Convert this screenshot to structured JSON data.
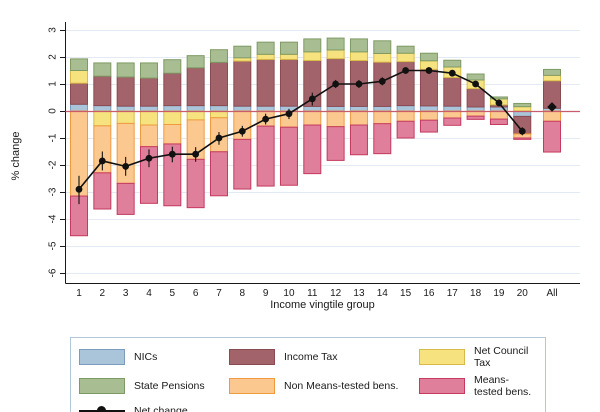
{
  "figure": {
    "y_axis_label": "% change",
    "x_axis_label": "Income vingtile group"
  },
  "legend": {
    "net_change_label": "Net change"
  },
  "chart_data": {
    "type": "bar",
    "stacked": true,
    "title": "",
    "xlabel": "Income vingtile group",
    "ylabel": "% change",
    "ylim": [
      -6,
      3
    ],
    "y_ticks": [
      3,
      2,
      1,
      0,
      -1,
      -2,
      -3,
      -4,
      -5,
      -6
    ],
    "grid": true,
    "gridline_color": "#e4eaf3",
    "axis_color": "#1a1a1a",
    "zero_line_color": "#c95c6a",
    "legend_position": "bottom",
    "categories": [
      "1",
      "2",
      "3",
      "4",
      "5",
      "6",
      "7",
      "8",
      "9",
      "10",
      "11",
      "12",
      "13",
      "14",
      "15",
      "16",
      "17",
      "18",
      "19",
      "20",
      "All"
    ],
    "series": [
      {
        "name": "NICs",
        "fill": "#aac4d9",
        "stroke": "#7b9cbd",
        "values": [
          0.25,
          0.2,
          0.18,
          0.18,
          0.2,
          0.2,
          0.2,
          0.18,
          0.18,
          0.18,
          0.17,
          0.17,
          0.17,
          0.17,
          0.2,
          0.19,
          0.18,
          0.15,
          0.15,
          -0.2,
          0.1
        ]
      },
      {
        "name": "Income Tax",
        "fill": "#a2646a",
        "stroke": "#8a4a52",
        "values": [
          0.78,
          1.09,
          1.08,
          1.04,
          1.2,
          1.4,
          1.6,
          1.67,
          1.73,
          1.73,
          1.7,
          1.77,
          1.7,
          1.64,
          1.63,
          1.35,
          1.06,
          0.68,
          0.08,
          -0.65,
          1.02
        ]
      },
      {
        "name": "Net Council Tax",
        "fill": "#f6e27f",
        "stroke": "#d8ba4a",
        "values": [
          0.47,
          -0.55,
          -0.46,
          -0.52,
          -0.5,
          -0.33,
          -0.25,
          0.12,
          0.19,
          0.19,
          0.32,
          0.32,
          0.32,
          0.32,
          0.31,
          0.32,
          0.39,
          0.32,
          0.22,
          0.16,
          0.2
        ]
      },
      {
        "name": "State Pensions",
        "fill": "#a9bd92",
        "stroke": "#7e9b64",
        "values": [
          0.43,
          0.49,
          0.52,
          0.56,
          0.5,
          0.45,
          0.47,
          0.43,
          0.45,
          0.45,
          0.48,
          0.44,
          0.48,
          0.47,
          0.26,
          0.28,
          0.25,
          0.22,
          0.07,
          0.12,
          0.22
        ]
      },
      {
        "name": "Non Means-tested bens.",
        "fill": "#fbc98f",
        "stroke": "#ef9a3f",
        "values": [
          -3.15,
          -1.74,
          -2.22,
          -0.8,
          -0.72,
          -1.46,
          -1.26,
          -1.05,
          -0.56,
          -0.6,
          -0.52,
          -0.58,
          -0.52,
          -0.47,
          -0.38,
          -0.34,
          -0.26,
          -0.19,
          -0.3,
          -0.15,
          -0.38
        ]
      },
      {
        "name": "Means-tested bens.",
        "fill": "#df7f9b",
        "stroke": "#c53a5f",
        "values": [
          -1.47,
          -1.34,
          -1.15,
          -2.1,
          -2.29,
          -1.79,
          -1.63,
          -1.84,
          -2.22,
          -2.15,
          -1.8,
          -1.25,
          -1.1,
          -1.11,
          -0.62,
          -0.44,
          -0.27,
          -0.12,
          -0.2,
          -0.05,
          -1.14
        ]
      }
    ],
    "net_change": {
      "name": "Net change",
      "color": "#111111",
      "marker_last": "diamond",
      "values": [
        -2.9,
        -1.85,
        -2.05,
        -1.75,
        -1.6,
        -1.6,
        -1.0,
        -0.75,
        -0.3,
        -0.1,
        0.45,
        1.0,
        1.0,
        1.1,
        1.5,
        1.5,
        1.4,
        1.0,
        0.3,
        -0.75,
        0.15
      ],
      "ci_low": [
        -3.45,
        -2.2,
        -2.4,
        -2.08,
        -1.9,
        -1.88,
        -1.25,
        -0.95,
        -0.5,
        -0.3,
        0.2,
        0.85,
        0.85,
        0.95,
        1.38,
        1.38,
        1.28,
        0.9,
        0.18,
        -0.9,
        0.05
      ],
      "ci_high": [
        -2.4,
        -1.5,
        -1.7,
        -1.42,
        -1.32,
        -1.34,
        -0.78,
        -0.55,
        -0.1,
        0.08,
        0.68,
        1.15,
        1.15,
        1.25,
        1.62,
        1.62,
        1.52,
        1.1,
        0.42,
        -0.6,
        0.25
      ]
    }
  }
}
